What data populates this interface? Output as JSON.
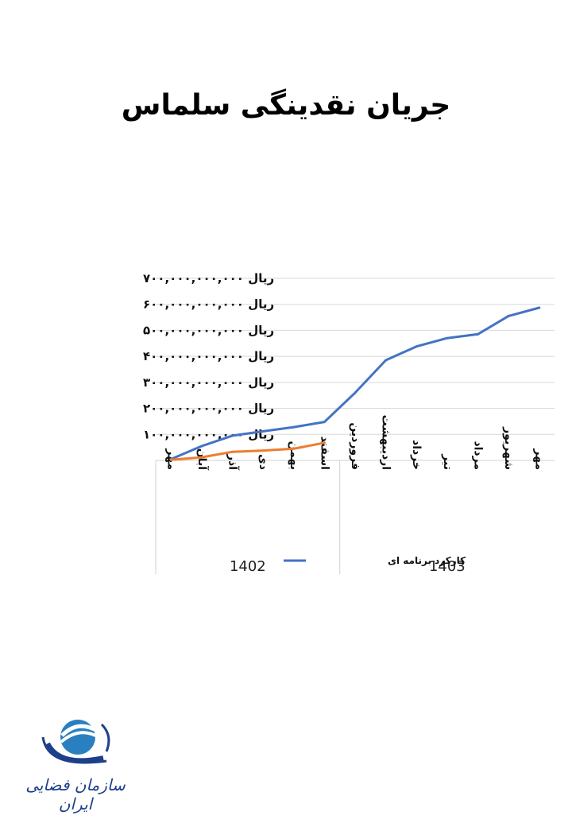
{
  "title": "جریان نقدینگی سلماس",
  "logo": {
    "text": "سازمان فضایی ایران",
    "color": "#1e3f8a"
  },
  "chart_data": {
    "type": "line",
    "categories": [
      "مهر",
      "آبان",
      "آذر",
      "دی",
      "بهمن",
      "اسفند",
      "فروردین",
      "اردیبهشت",
      "خرداد",
      "تیر",
      "مرداد",
      "شهریور",
      "مهر"
    ],
    "groups": [
      {
        "label": "1402",
        "start": 0,
        "end": 5
      },
      {
        "label": "1403",
        "start": 6,
        "end": 12
      }
    ],
    "series": [
      {
        "name": "کارکرد برنامه ای",
        "color": "#4472c4",
        "values": [
          5000000000,
          55000000000,
          95000000000,
          112000000000,
          128000000000,
          148000000000,
          260000000000,
          385000000000,
          438000000000,
          470000000000,
          485000000000,
          555000000000,
          587000000000
        ]
      },
      {
        "color": "#ed7d31",
        "values": [
          2000000000,
          12000000000,
          33000000000,
          38000000000,
          45000000000,
          68000000000,
          null,
          null,
          null,
          null,
          null,
          null,
          null
        ]
      }
    ],
    "ylim": [
      0,
      700000000000
    ],
    "yticks": [
      {
        "value": 100000000000,
        "label": "ریال ۱۰۰,۰۰۰,۰۰۰,۰۰۰"
      },
      {
        "value": 200000000000,
        "label": "ریال ۲۰۰,۰۰۰,۰۰۰,۰۰۰"
      },
      {
        "value": 300000000000,
        "label": "ریال ۳۰۰,۰۰۰,۰۰۰,۰۰۰"
      },
      {
        "value": 400000000000,
        "label": "ریال ۴۰۰,۰۰۰,۰۰۰,۰۰۰"
      },
      {
        "value": 500000000000,
        "label": "ریال ۵۰۰,۰۰۰,۰۰۰,۰۰۰"
      },
      {
        "value": 600000000000,
        "label": "ریال ۶۰۰,۰۰۰,۰۰۰,۰۰۰"
      },
      {
        "value": 700000000000,
        "label": "ریال ۷۰۰,۰۰۰,۰۰۰,۰۰۰"
      }
    ],
    "grid": true,
    "legend": "bottom-center"
  }
}
